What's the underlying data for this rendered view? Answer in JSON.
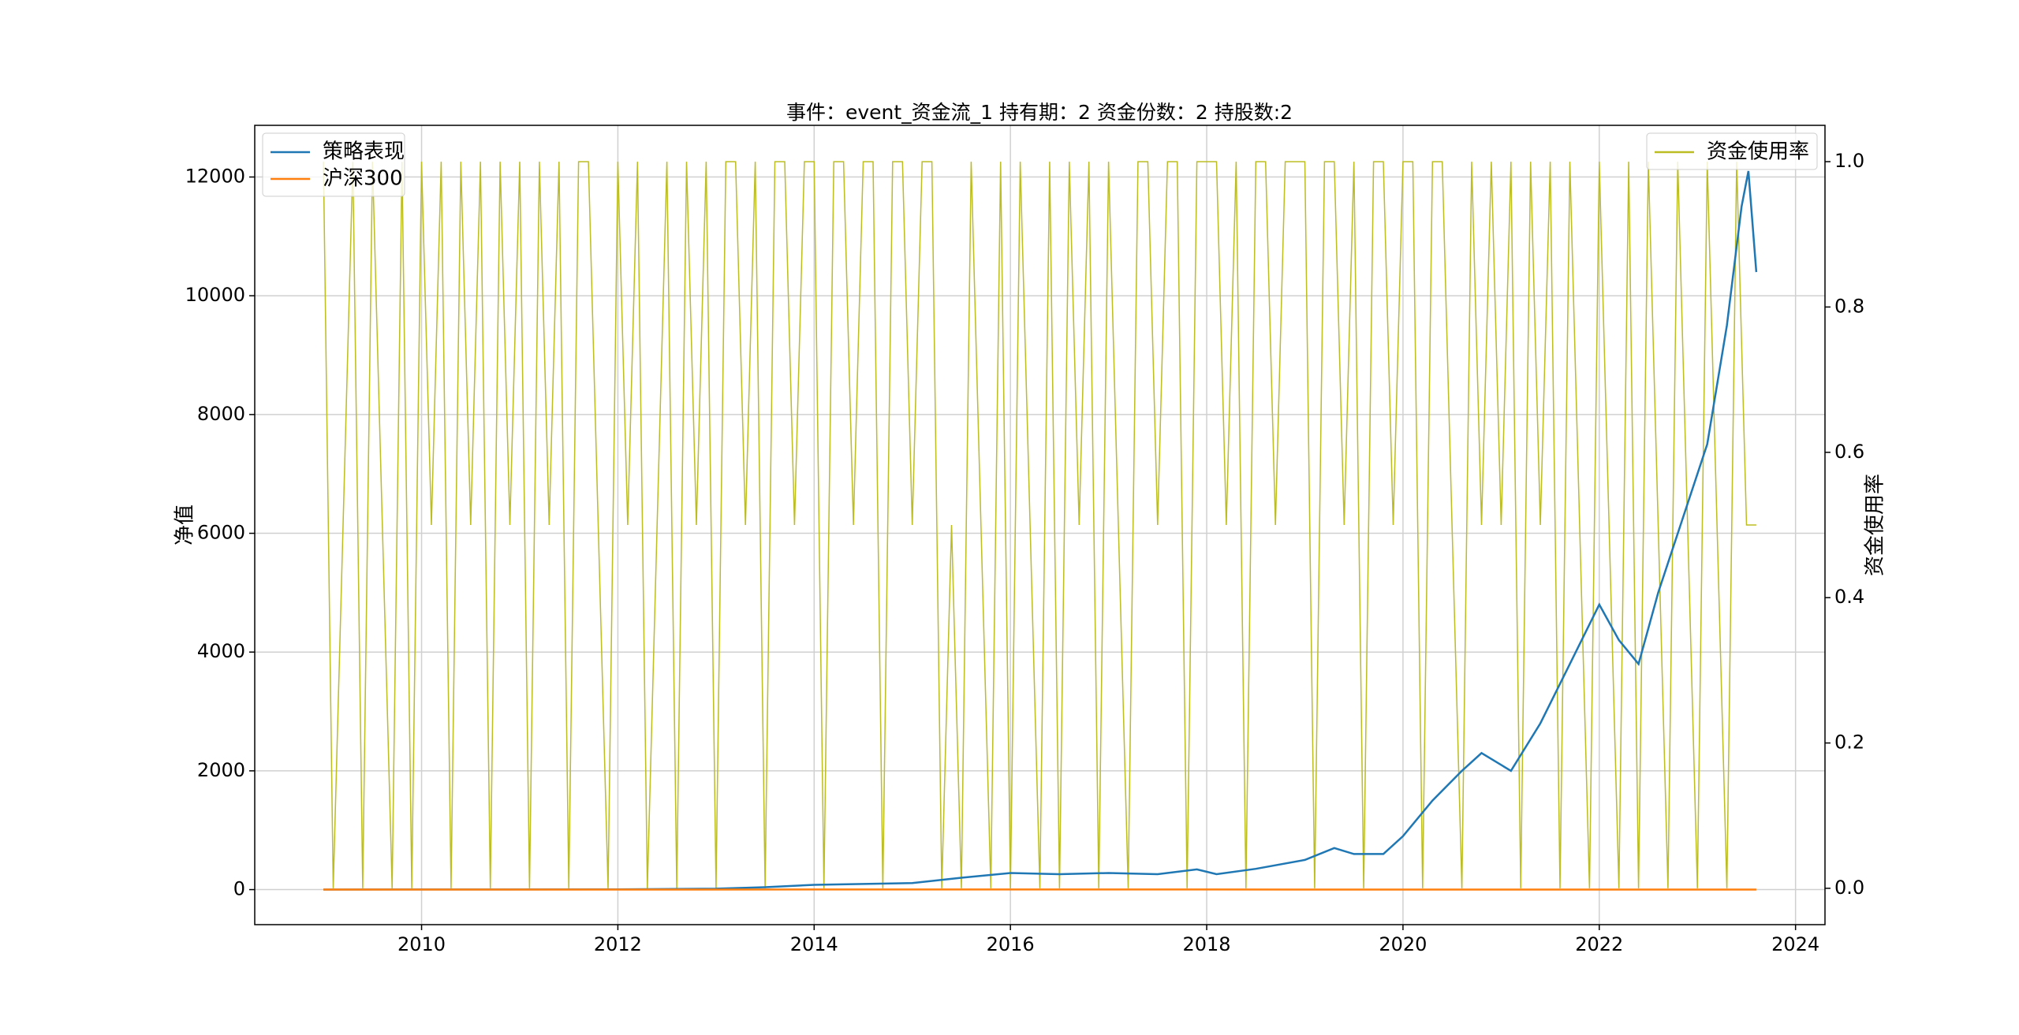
{
  "chart_data": {
    "type": "line",
    "title": "事件：event_资金流_1 持有期：2 资金份数：2 持股数:2",
    "ylabel": "净值",
    "y2label": "资金使用率",
    "xlim": [
      2008.3,
      2024.3
    ],
    "xticks": [
      2010,
      2012,
      2014,
      2016,
      2018,
      2020,
      2022,
      2024
    ],
    "ylim": [
      -590,
      12870
    ],
    "yticks": [
      0,
      2000,
      4000,
      6000,
      8000,
      10000,
      12000
    ],
    "y2lim": [
      -0.05,
      1.05
    ],
    "y2ticks": [
      {
        "value": 0,
        "label": "0.0"
      },
      {
        "value": 0.2,
        "label": "0.2"
      },
      {
        "value": 0.4,
        "label": "0.4"
      },
      {
        "value": 0.6,
        "label": "0.6"
      },
      {
        "value": 0.8,
        "label": "0.8"
      },
      {
        "value": 1,
        "label": "1.0"
      }
    ],
    "grid": true,
    "legend": "upper left",
    "legend2": "upper right",
    "series": [
      {
        "name": "策略表现",
        "color": "#1f77b4",
        "x": [
          2009.0,
          2012.0,
          2013.0,
          2013.5,
          2014.0,
          2015.0,
          2015.5,
          2016.0,
          2016.5,
          2017.0,
          2017.5,
          2017.9,
          2018.1,
          2018.5,
          2019.0,
          2019.3,
          2019.5,
          2019.8,
          2020.0,
          2020.3,
          2020.6,
          2020.8,
          2021.1,
          2021.4,
          2021.7,
          2022.0,
          2022.2,
          2022.4,
          2022.6,
          2022.9,
          2023.1,
          2023.3,
          2023.45,
          2023.52,
          2023.6
        ],
        "values": [
          1,
          5,
          15,
          40,
          80,
          110,
          200,
          280,
          260,
          280,
          260,
          340,
          260,
          350,
          500,
          700,
          600,
          600,
          900,
          1500,
          2000,
          2300,
          2000,
          2800,
          3800,
          4800,
          4200,
          3800,
          5000,
          6500,
          7500,
          9500,
          11500,
          12100,
          10400
        ]
      },
      {
        "name": "沪深300",
        "color": "#ff7f0e",
        "x": [
          2009.0,
          2015.5,
          2023.6
        ],
        "values": [
          1,
          2,
          1.3
        ]
      },
      {
        "name": "资金使用率",
        "color": "#bcbd22",
        "axis": "y2",
        "x": [
          2009.0,
          2009.1,
          2009.2,
          2009.3,
          2009.4,
          2009.5,
          2009.6,
          2009.7,
          2009.8,
          2009.9,
          2010.0,
          2010.1,
          2010.2,
          2010.3,
          2010.4,
          2010.5,
          2010.6,
          2010.7,
          2010.8,
          2010.9,
          2011.0,
          2011.1,
          2011.2,
          2011.3,
          2011.4,
          2011.5,
          2011.6,
          2011.7,
          2011.8,
          2011.9,
          2012.0,
          2012.1,
          2012.2,
          2012.3,
          2012.4,
          2012.5,
          2012.6,
          2012.7,
          2012.8,
          2012.9,
          2013.0,
          2013.1,
          2013.2,
          2013.3,
          2013.4,
          2013.5,
          2013.6,
          2013.7,
          2013.8,
          2013.9,
          2014.0,
          2014.1,
          2014.2,
          2014.3,
          2014.4,
          2014.5,
          2014.6,
          2014.7,
          2014.8,
          2014.9,
          2015.0,
          2015.1,
          2015.2,
          2015.3,
          2015.4,
          2015.5,
          2015.6,
          2015.7,
          2015.8,
          2015.9,
          2016.0,
          2016.1,
          2016.2,
          2016.3,
          2016.4,
          2016.5,
          2016.6,
          2016.7,
          2016.8,
          2016.9,
          2017.0,
          2017.1,
          2017.2,
          2017.3,
          2017.4,
          2017.5,
          2017.6,
          2017.7,
          2017.8,
          2017.9,
          2018.0,
          2018.1,
          2018.2,
          2018.3,
          2018.4,
          2018.5,
          2018.6,
          2018.7,
          2018.8,
          2018.9,
          2019.0,
          2019.1,
          2019.2,
          2019.3,
          2019.4,
          2019.5,
          2019.6,
          2019.7,
          2019.8,
          2019.9,
          2020.0,
          2020.1,
          2020.2,
          2020.3,
          2020.4,
          2020.5,
          2020.6,
          2020.7,
          2020.8,
          2020.9,
          2021.0,
          2021.1,
          2021.2,
          2021.3,
          2021.4,
          2021.5,
          2021.6,
          2021.7,
          2021.8,
          2021.9,
          2022.0,
          2022.1,
          2022.2,
          2022.3,
          2022.4,
          2022.5,
          2022.6,
          2022.7,
          2022.8,
          2022.9,
          2023.0,
          2023.1,
          2023.2,
          2023.3,
          2023.4,
          2023.5,
          2023.6
        ],
        "values": [
          1,
          0,
          0.5,
          1,
          0,
          1,
          0.5,
          0,
          1,
          0,
          1,
          0.5,
          1,
          0,
          1,
          0.5,
          1,
          0,
          1,
          0.5,
          1,
          0,
          1,
          0.5,
          1,
          0,
          1,
          1,
          0.5,
          0,
          1,
          0.5,
          1,
          0,
          0.5,
          1,
          0,
          1,
          0.5,
          1,
          0,
          1,
          1,
          0.5,
          1,
          0,
          1,
          1,
          0.5,
          1,
          1,
          0,
          1,
          1,
          0.5,
          1,
          1,
          0,
          1,
          1,
          0.5,
          1,
          1,
          0,
          0.5,
          0,
          1,
          0.5,
          0,
          1,
          0,
          1,
          0.5,
          0,
          1,
          0,
          1,
          0.5,
          1,
          0,
          1,
          0.5,
          0,
          1,
          1,
          0.5,
          1,
          1,
          0,
          1,
          1,
          1,
          0.5,
          1,
          0,
          1,
          1,
          0.5,
          1,
          1,
          1,
          0,
          1,
          1,
          0.5,
          1,
          0,
          1,
          1,
          0.5,
          1,
          1,
          0,
          1,
          1,
          0.5,
          0,
          1,
          0.5,
          1,
          0.5,
          1,
          0,
          1,
          0.5,
          1,
          0,
          1,
          0.5,
          0,
          1,
          0.5,
          0,
          1,
          0,
          1,
          0.5,
          0,
          1,
          0.5,
          0,
          1,
          0.5,
          0,
          1,
          0.5,
          0.5
        ]
      }
    ]
  }
}
